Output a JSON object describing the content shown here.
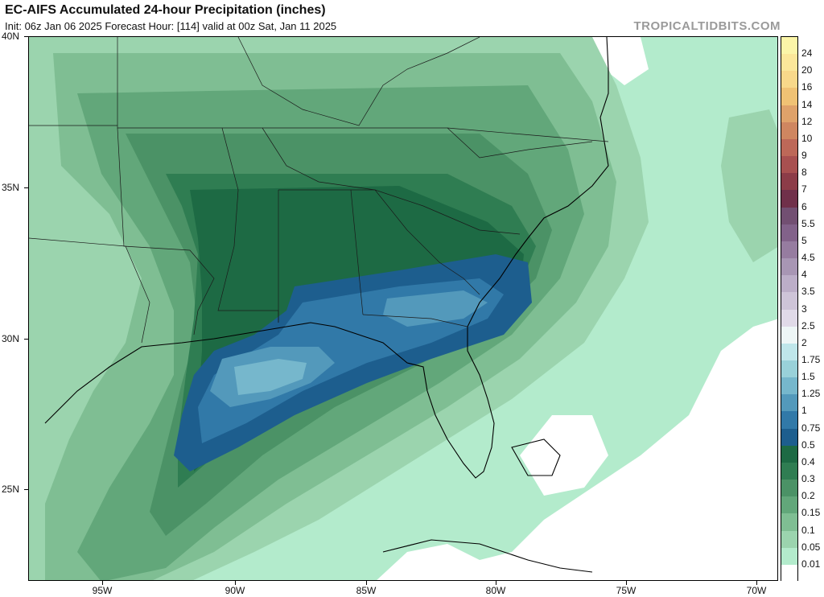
{
  "header": {
    "title": "EC-AIFS Accumulated 24-hour Precipitation (inches)",
    "subtitle": "Init: 06z Jan 06 2025   Forecast Hour: [114]   valid at 00z Sat, Jan 11 2025",
    "watermark": "TROPICALTIDBITS.COM"
  },
  "axes": {
    "latitudes": [
      "40N",
      "35N",
      "30N",
      "25N"
    ],
    "longitudes": [
      "95W",
      "90W",
      "85W",
      "80W",
      "75W",
      "70W"
    ]
  },
  "legend": {
    "levels": [
      {
        "label": "24",
        "color": "#fbf5a8"
      },
      {
        "label": "20",
        "color": "#fbe79a"
      },
      {
        "label": "16",
        "color": "#f8d88a"
      },
      {
        "label": "14",
        "color": "#f0c274"
      },
      {
        "label": "12",
        "color": "#dfa26a"
      },
      {
        "label": "10",
        "color": "#cf8660"
      },
      {
        "label": "9",
        "color": "#bd6858"
      },
      {
        "label": "8",
        "color": "#a85050"
      },
      {
        "label": "7",
        "color": "#8c3c48"
      },
      {
        "label": "6",
        "color": "#70304a"
      },
      {
        "label": "5.5",
        "color": "#724f72"
      },
      {
        "label": "5",
        "color": "#82628a"
      },
      {
        "label": "4.5",
        "color": "#967ca0"
      },
      {
        "label": "4",
        "color": "#a896b4"
      },
      {
        "label": "3.5",
        "color": "#bcaec8"
      },
      {
        "label": "3",
        "color": "#cec4d8"
      },
      {
        "label": "2.5",
        "color": "#e0dae8"
      },
      {
        "label": "2",
        "color": "#edf6f6"
      },
      {
        "label": "1.75",
        "color": "#bfe6ea"
      },
      {
        "label": "1.5",
        "color": "#99d1d9"
      },
      {
        "label": "1.25",
        "color": "#76b7cc"
      },
      {
        "label": "1",
        "color": "#5399bb"
      },
      {
        "label": "0.75",
        "color": "#3179a8"
      },
      {
        "label": "0.5",
        "color": "#1d5e8e"
      },
      {
        "label": "0.4",
        "color": "#1d6a44"
      },
      {
        "label": "0.3",
        "color": "#2f7d52"
      },
      {
        "label": "0.2",
        "color": "#4b9266"
      },
      {
        "label": "0.15",
        "color": "#62a77a"
      },
      {
        "label": "0.1",
        "color": "#7fbe93"
      },
      {
        "label": "0.05",
        "color": "#9bd4ae"
      },
      {
        "label": "0.01",
        "color": "#b3ebcc"
      }
    ]
  }
}
